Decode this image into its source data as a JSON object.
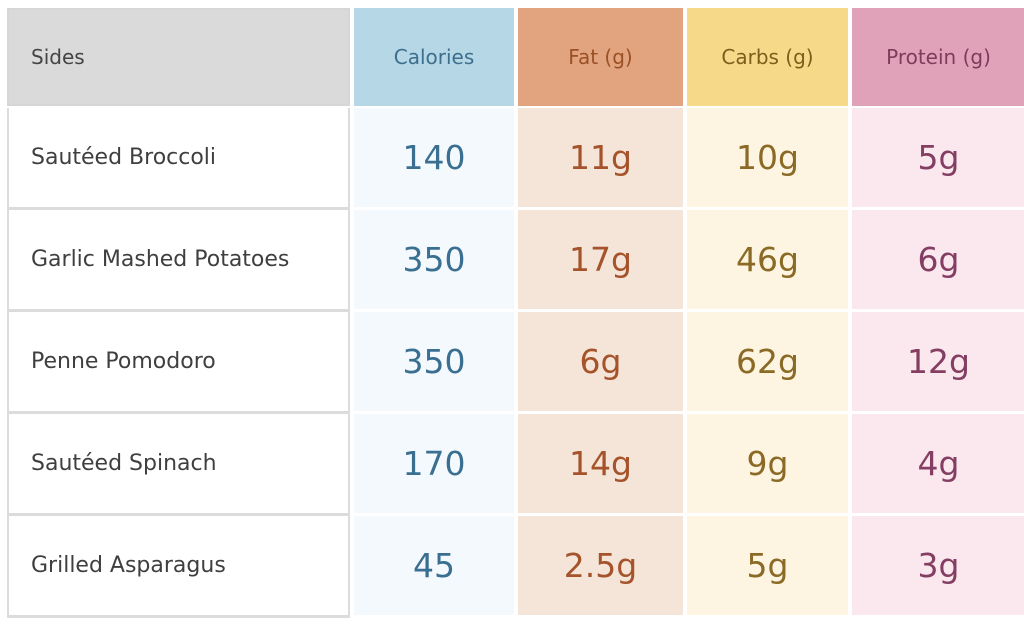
{
  "table": {
    "headers": {
      "sides": "Sides",
      "calories": "Calories",
      "fat": "Fat (g)",
      "carbs": "Carbs (g)",
      "protein": "Protein (g)"
    },
    "rows": [
      {
        "side": "Sautéed Broccoli",
        "calories": "140",
        "fat": "11g",
        "carbs": "10g",
        "protein": "5g"
      },
      {
        "side": "Garlic Mashed Potatoes",
        "calories": "350",
        "fat": "17g",
        "carbs": "46g",
        "protein": "6g"
      },
      {
        "side": "Penne Pomodoro",
        "calories": "350",
        "fat": "6g",
        "carbs": "62g",
        "protein": "12g"
      },
      {
        "side": "Sautéed Spinach",
        "calories": "170",
        "fat": "14g",
        "carbs": "9g",
        "protein": "4g"
      },
      {
        "side": "Grilled Asparagus",
        "calories": "45",
        "fat": "2.5g",
        "carbs": "5g",
        "protein": "3g"
      }
    ]
  },
  "colors": {
    "calories_header": "#b5d7e6",
    "fat_header": "#e2a47e",
    "carbs_header": "#f7d98a",
    "protein_header": "#e0a2b9",
    "sides_header": "#dadada"
  }
}
